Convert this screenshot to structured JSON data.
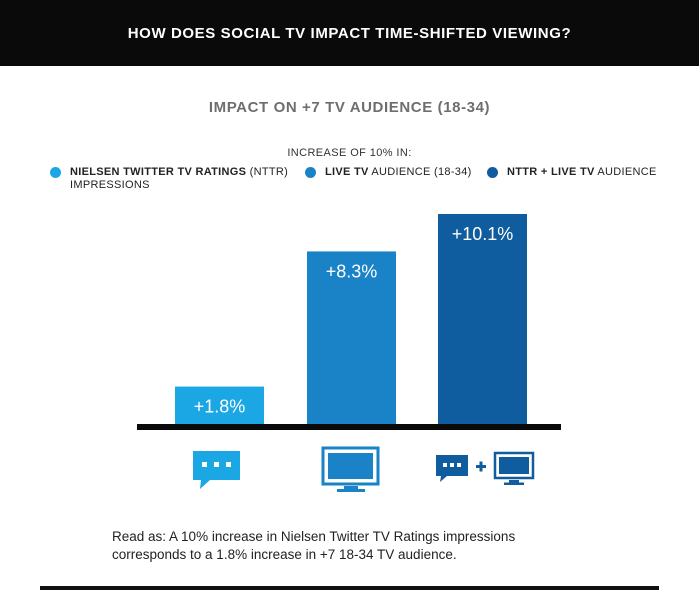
{
  "banner": {
    "title": "HOW DOES SOCIAL TV IMPACT TIME-SHIFTED VIEWING?"
  },
  "chart_data": {
    "type": "bar",
    "title": "IMPACT ON +7 TV AUDIENCE (18-34)",
    "legend_caption": "INCREASE OF 10% IN:",
    "categories": [
      "NTTR impressions",
      "Live TV audience",
      "NTTR + Live TV audience"
    ],
    "values": [
      1.8,
      8.3,
      10.1
    ],
    "value_labels": [
      "+1.8%",
      "+8.3%",
      "+10.1%"
    ],
    "colors": [
      "#1ba7e4",
      "#1a82c6",
      "#0f5c9e"
    ],
    "ylim": [
      0,
      10.1
    ],
    "legend": [
      {
        "bold": "NIELSEN TWITTER TV RATINGS",
        "rest": " (NTTR)",
        "line2": "IMPRESSIONS",
        "color": "#1ba7e4"
      },
      {
        "bold": "LIVE TV",
        "rest": " AUDIENCE (18-34)",
        "line2": "",
        "color": "#1a82c6"
      },
      {
        "bold": "NTTR + LIVE TV",
        "rest": " AUDIENCE",
        "line2": "",
        "color": "#0f5c9e"
      }
    ],
    "icons": [
      "chat-bubble-icon",
      "tv-icon",
      "chat-plus-tv-icon"
    ]
  },
  "note": {
    "line1": "Read as: A 10% increase in Nielsen Twitter TV Ratings impressions",
    "line2": "corresponds to a 1.8% increase in +7 18-34 TV audience."
  }
}
